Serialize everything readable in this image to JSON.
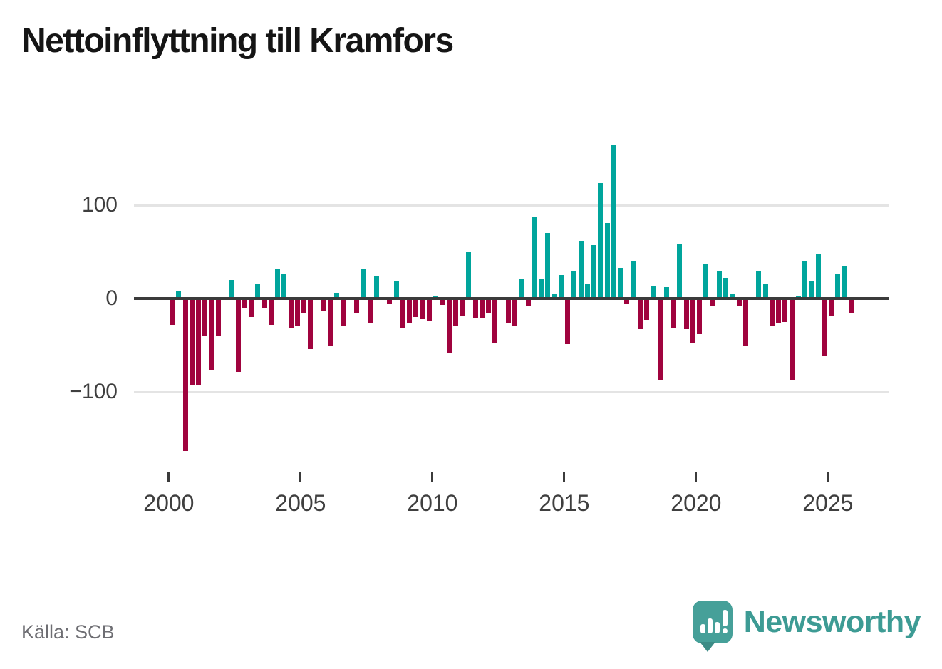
{
  "title": "Nettoinflyttning till Kramfors",
  "source": "Källa: SCB",
  "brand": {
    "name": "Newsworthy",
    "color": "#3d9b94"
  },
  "colors": {
    "positive": "#00a59c",
    "negative": "#a0033e",
    "axis": "#3b3b3b",
    "grid": "#e4e4e4",
    "tick_text": "#3f3f3f",
    "source_text": "#6e6e73",
    "title_text": "#151515"
  },
  "chart_data": {
    "type": "bar",
    "title": "Nettoinflyttning till Kramfors",
    "xlabel": "",
    "ylabel": "",
    "frequency": "quarterly",
    "start_year": 2000,
    "x_tick_years": [
      2000,
      2005,
      2010,
      2015,
      2020,
      2025
    ],
    "x_tick_labels": [
      "2000",
      "2005",
      "2010",
      "2015",
      "2020",
      "2025"
    ],
    "y_ticks": [
      100,
      0,
      -100
    ],
    "y_tick_labels": [
      "100",
      "0",
      "−100"
    ],
    "ylim": [
      -170,
      170
    ],
    "grid": "horizontal",
    "legend": "none",
    "series": [
      {
        "name": "Nettoinflyttning",
        "values": [
          -28,
          8,
          -163,
          -92,
          -92,
          -40,
          -77,
          -40,
          0,
          20,
          -79,
          -10,
          -20,
          15,
          -11,
          -28,
          31,
          27,
          -32,
          -29,
          -16,
          -54,
          0,
          -14,
          -51,
          6,
          -30,
          0,
          -15,
          32,
          -26,
          24,
          0,
          -5,
          18,
          -32,
          -26,
          -20,
          -22,
          -24,
          3,
          -7,
          -59,
          -29,
          -18,
          50,
          -21,
          -21,
          -16,
          -47,
          0,
          -27,
          -30,
          21,
          -8,
          88,
          21,
          70,
          5,
          25,
          -49,
          29,
          62,
          15,
          57,
          124,
          81,
          165,
          33,
          -5,
          40,
          -33,
          -23,
          14,
          -87,
          12,
          -32,
          58,
          -33,
          -48,
          -38,
          37,
          -8,
          30,
          22,
          5,
          -8,
          -51,
          0,
          30,
          16,
          -30,
          -26,
          -25,
          -87,
          3,
          40,
          18,
          47,
          -62,
          -19,
          26,
          34,
          -16
        ]
      }
    ]
  }
}
